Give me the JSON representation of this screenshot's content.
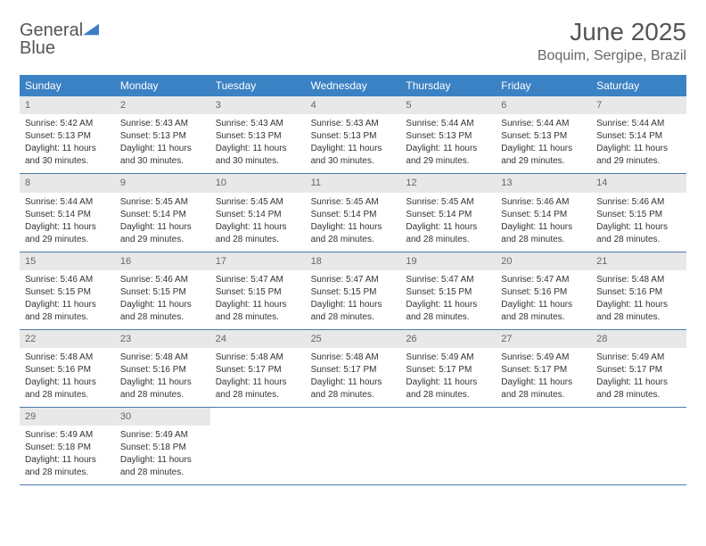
{
  "logo": {
    "line1": "General",
    "line2": "Blue"
  },
  "title": "June 2025",
  "location": "Boquim, Sergipe, Brazil",
  "colors": {
    "header_bg": "#3b82c4",
    "header_text": "#ffffff",
    "daynum_bg": "#e8e8e8",
    "daynum_text": "#666666",
    "body_text": "#333333",
    "rule": "#4a7ba8",
    "title_text": "#555555",
    "logo_gray": "#555555",
    "logo_blue": "#3b7fc4"
  },
  "weekdays": [
    "Sunday",
    "Monday",
    "Tuesday",
    "Wednesday",
    "Thursday",
    "Friday",
    "Saturday"
  ],
  "weeks": [
    [
      {
        "n": "1",
        "sr": "Sunrise: 5:42 AM",
        "ss": "Sunset: 5:13 PM",
        "dl1": "Daylight: 11 hours",
        "dl2": "and 30 minutes."
      },
      {
        "n": "2",
        "sr": "Sunrise: 5:43 AM",
        "ss": "Sunset: 5:13 PM",
        "dl1": "Daylight: 11 hours",
        "dl2": "and 30 minutes."
      },
      {
        "n": "3",
        "sr": "Sunrise: 5:43 AM",
        "ss": "Sunset: 5:13 PM",
        "dl1": "Daylight: 11 hours",
        "dl2": "and 30 minutes."
      },
      {
        "n": "4",
        "sr": "Sunrise: 5:43 AM",
        "ss": "Sunset: 5:13 PM",
        "dl1": "Daylight: 11 hours",
        "dl2": "and 30 minutes."
      },
      {
        "n": "5",
        "sr": "Sunrise: 5:44 AM",
        "ss": "Sunset: 5:13 PM",
        "dl1": "Daylight: 11 hours",
        "dl2": "and 29 minutes."
      },
      {
        "n": "6",
        "sr": "Sunrise: 5:44 AM",
        "ss": "Sunset: 5:13 PM",
        "dl1": "Daylight: 11 hours",
        "dl2": "and 29 minutes."
      },
      {
        "n": "7",
        "sr": "Sunrise: 5:44 AM",
        "ss": "Sunset: 5:14 PM",
        "dl1": "Daylight: 11 hours",
        "dl2": "and 29 minutes."
      }
    ],
    [
      {
        "n": "8",
        "sr": "Sunrise: 5:44 AM",
        "ss": "Sunset: 5:14 PM",
        "dl1": "Daylight: 11 hours",
        "dl2": "and 29 minutes."
      },
      {
        "n": "9",
        "sr": "Sunrise: 5:45 AM",
        "ss": "Sunset: 5:14 PM",
        "dl1": "Daylight: 11 hours",
        "dl2": "and 29 minutes."
      },
      {
        "n": "10",
        "sr": "Sunrise: 5:45 AM",
        "ss": "Sunset: 5:14 PM",
        "dl1": "Daylight: 11 hours",
        "dl2": "and 28 minutes."
      },
      {
        "n": "11",
        "sr": "Sunrise: 5:45 AM",
        "ss": "Sunset: 5:14 PM",
        "dl1": "Daylight: 11 hours",
        "dl2": "and 28 minutes."
      },
      {
        "n": "12",
        "sr": "Sunrise: 5:45 AM",
        "ss": "Sunset: 5:14 PM",
        "dl1": "Daylight: 11 hours",
        "dl2": "and 28 minutes."
      },
      {
        "n": "13",
        "sr": "Sunrise: 5:46 AM",
        "ss": "Sunset: 5:14 PM",
        "dl1": "Daylight: 11 hours",
        "dl2": "and 28 minutes."
      },
      {
        "n": "14",
        "sr": "Sunrise: 5:46 AM",
        "ss": "Sunset: 5:15 PM",
        "dl1": "Daylight: 11 hours",
        "dl2": "and 28 minutes."
      }
    ],
    [
      {
        "n": "15",
        "sr": "Sunrise: 5:46 AM",
        "ss": "Sunset: 5:15 PM",
        "dl1": "Daylight: 11 hours",
        "dl2": "and 28 minutes."
      },
      {
        "n": "16",
        "sr": "Sunrise: 5:46 AM",
        "ss": "Sunset: 5:15 PM",
        "dl1": "Daylight: 11 hours",
        "dl2": "and 28 minutes."
      },
      {
        "n": "17",
        "sr": "Sunrise: 5:47 AM",
        "ss": "Sunset: 5:15 PM",
        "dl1": "Daylight: 11 hours",
        "dl2": "and 28 minutes."
      },
      {
        "n": "18",
        "sr": "Sunrise: 5:47 AM",
        "ss": "Sunset: 5:15 PM",
        "dl1": "Daylight: 11 hours",
        "dl2": "and 28 minutes."
      },
      {
        "n": "19",
        "sr": "Sunrise: 5:47 AM",
        "ss": "Sunset: 5:15 PM",
        "dl1": "Daylight: 11 hours",
        "dl2": "and 28 minutes."
      },
      {
        "n": "20",
        "sr": "Sunrise: 5:47 AM",
        "ss": "Sunset: 5:16 PM",
        "dl1": "Daylight: 11 hours",
        "dl2": "and 28 minutes."
      },
      {
        "n": "21",
        "sr": "Sunrise: 5:48 AM",
        "ss": "Sunset: 5:16 PM",
        "dl1": "Daylight: 11 hours",
        "dl2": "and 28 minutes."
      }
    ],
    [
      {
        "n": "22",
        "sr": "Sunrise: 5:48 AM",
        "ss": "Sunset: 5:16 PM",
        "dl1": "Daylight: 11 hours",
        "dl2": "and 28 minutes."
      },
      {
        "n": "23",
        "sr": "Sunrise: 5:48 AM",
        "ss": "Sunset: 5:16 PM",
        "dl1": "Daylight: 11 hours",
        "dl2": "and 28 minutes."
      },
      {
        "n": "24",
        "sr": "Sunrise: 5:48 AM",
        "ss": "Sunset: 5:17 PM",
        "dl1": "Daylight: 11 hours",
        "dl2": "and 28 minutes."
      },
      {
        "n": "25",
        "sr": "Sunrise: 5:48 AM",
        "ss": "Sunset: 5:17 PM",
        "dl1": "Daylight: 11 hours",
        "dl2": "and 28 minutes."
      },
      {
        "n": "26",
        "sr": "Sunrise: 5:49 AM",
        "ss": "Sunset: 5:17 PM",
        "dl1": "Daylight: 11 hours",
        "dl2": "and 28 minutes."
      },
      {
        "n": "27",
        "sr": "Sunrise: 5:49 AM",
        "ss": "Sunset: 5:17 PM",
        "dl1": "Daylight: 11 hours",
        "dl2": "and 28 minutes."
      },
      {
        "n": "28",
        "sr": "Sunrise: 5:49 AM",
        "ss": "Sunset: 5:17 PM",
        "dl1": "Daylight: 11 hours",
        "dl2": "and 28 minutes."
      }
    ],
    [
      {
        "n": "29",
        "sr": "Sunrise: 5:49 AM",
        "ss": "Sunset: 5:18 PM",
        "dl1": "Daylight: 11 hours",
        "dl2": "and 28 minutes."
      },
      {
        "n": "30",
        "sr": "Sunrise: 5:49 AM",
        "ss": "Sunset: 5:18 PM",
        "dl1": "Daylight: 11 hours",
        "dl2": "and 28 minutes."
      },
      null,
      null,
      null,
      null,
      null
    ]
  ]
}
